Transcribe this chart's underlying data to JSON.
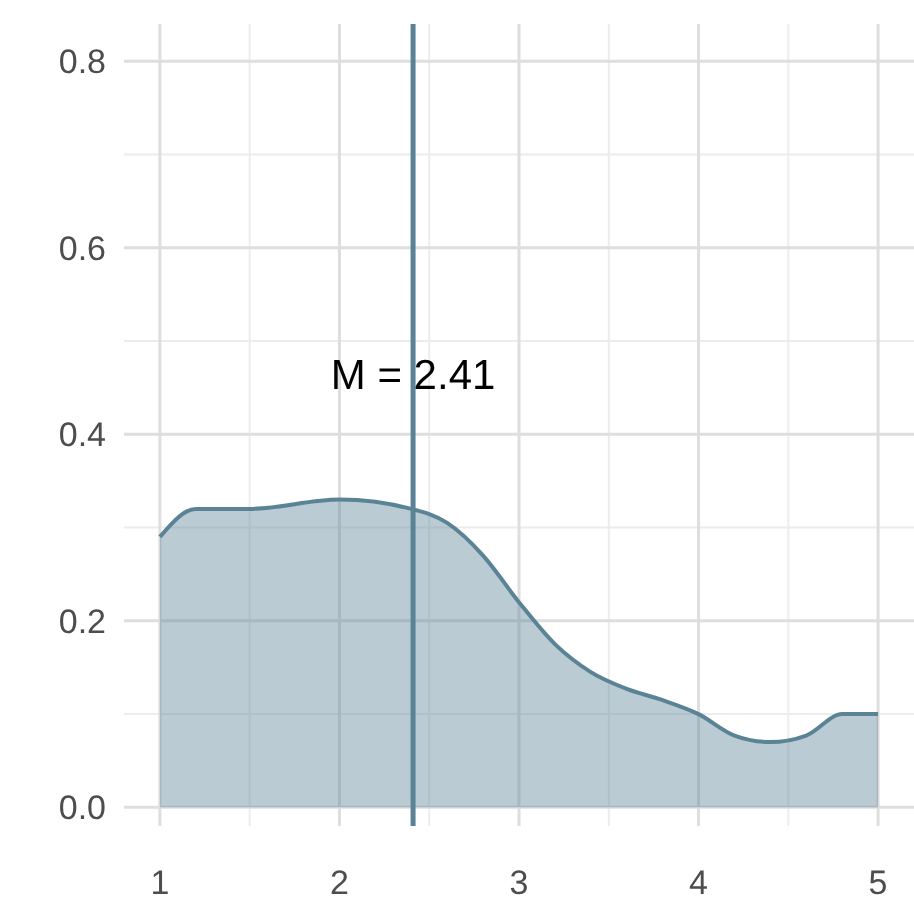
{
  "chart_data": {
    "type": "area",
    "x": [
      1,
      1.2,
      1.5,
      2,
      2.4,
      2.6,
      2.8,
      3,
      3.2,
      3.4,
      3.6,
      3.8,
      4,
      4.2,
      4.4,
      4.6,
      4.8,
      5
    ],
    "series": [
      {
        "color": "#5b8396",
        "values": [
          0.29,
          0.32,
          0.32,
          0.33,
          0.32,
          0.305,
          0.27,
          0.22,
          0.175,
          0.145,
          0.127,
          0.115,
          0.1,
          0.077,
          0.07,
          0.077,
          0.1,
          0.1
        ]
      }
    ],
    "xlim": [
      0.8,
      5.2
    ],
    "ylim": [
      -0.02,
      0.84
    ],
    "xticks": [
      1,
      2,
      3,
      4,
      5
    ],
    "yticks": [
      {
        "value": 0,
        "label": "0.0"
      },
      {
        "value": 0.2,
        "label": "0.2"
      },
      {
        "value": 0.4,
        "label": "0.4"
      },
      {
        "value": 0.6,
        "label": "0.6"
      },
      {
        "value": 0.8,
        "label": "0.8"
      }
    ],
    "grid": true,
    "ref_lines": [
      {
        "axis": "x",
        "value": 2.41,
        "label": "M = 2.41",
        "color": "#5b8396"
      }
    ]
  }
}
